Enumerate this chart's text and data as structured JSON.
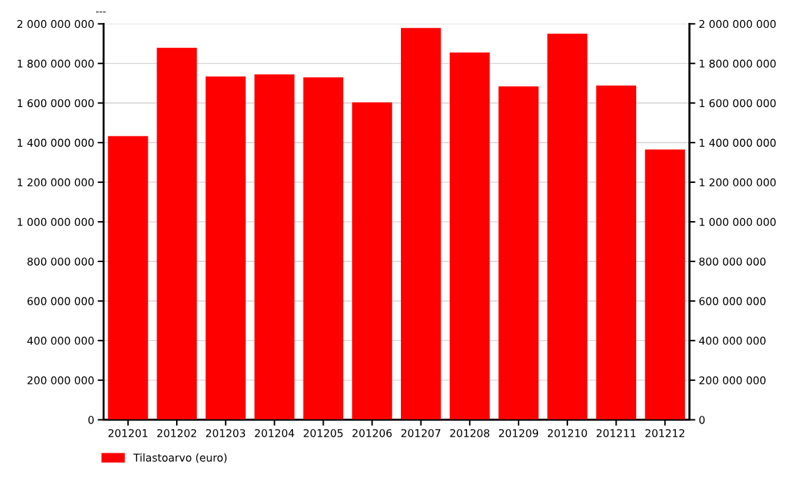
{
  "chart_data": {
    "type": "bar",
    "title": "---",
    "categories": [
      "201201",
      "201202",
      "201203",
      "201204",
      "201205",
      "201206",
      "201207",
      "201208",
      "201209",
      "201210",
      "201211",
      "201212"
    ],
    "series": [
      {
        "name": "Tilastoarvo (euro)",
        "color": "#ff0000",
        "values": [
          1433000000,
          1879000000,
          1734000000,
          1745000000,
          1730000000,
          1603000000,
          1979000000,
          1855000000,
          1684000000,
          1950000000,
          1688000000,
          1365000000
        ]
      }
    ],
    "ylim": [
      0,
      2000000000
    ],
    "yticks": [
      {
        "value": 0,
        "label": "0"
      },
      {
        "value": 200000000,
        "label": "200 000 000"
      },
      {
        "value": 400000000,
        "label": "400 000 000"
      },
      {
        "value": 600000000,
        "label": "600 000 000"
      },
      {
        "value": 800000000,
        "label": "800 000 000"
      },
      {
        "value": 1000000000,
        "label": "1 000 000 000"
      },
      {
        "value": 1200000000,
        "label": "1 200 000 000"
      },
      {
        "value": 1400000000,
        "label": "1 400 000 000"
      },
      {
        "value": 1600000000,
        "label": "1 600 000 000"
      },
      {
        "value": 1800000000,
        "label": "1 800 000 000"
      },
      {
        "value": 2000000000,
        "label": "2 000 000 000"
      }
    ],
    "y2lim": [
      0,
      2000000000
    ],
    "y2ticks": [
      {
        "value": 0,
        "label": "0"
      },
      {
        "value": 200000000,
        "label": "200 000 000"
      },
      {
        "value": 400000000,
        "label": "400 000 000"
      },
      {
        "value": 600000000,
        "label": "600 000 000"
      },
      {
        "value": 800000000,
        "label": "800 000 000"
      },
      {
        "value": 1000000000,
        "label": "1 000 000 000"
      },
      {
        "value": 1200000000,
        "label": "1 200 000 000"
      },
      {
        "value": 1400000000,
        "label": "1 400 000 000"
      },
      {
        "value": 1600000000,
        "label": "1 600 000 000"
      },
      {
        "value": 1800000000,
        "label": "1 800 000 000"
      },
      {
        "value": 2000000000,
        "label": "2 000 000 000"
      }
    ],
    "grid": "y",
    "legend": "bottom left"
  }
}
